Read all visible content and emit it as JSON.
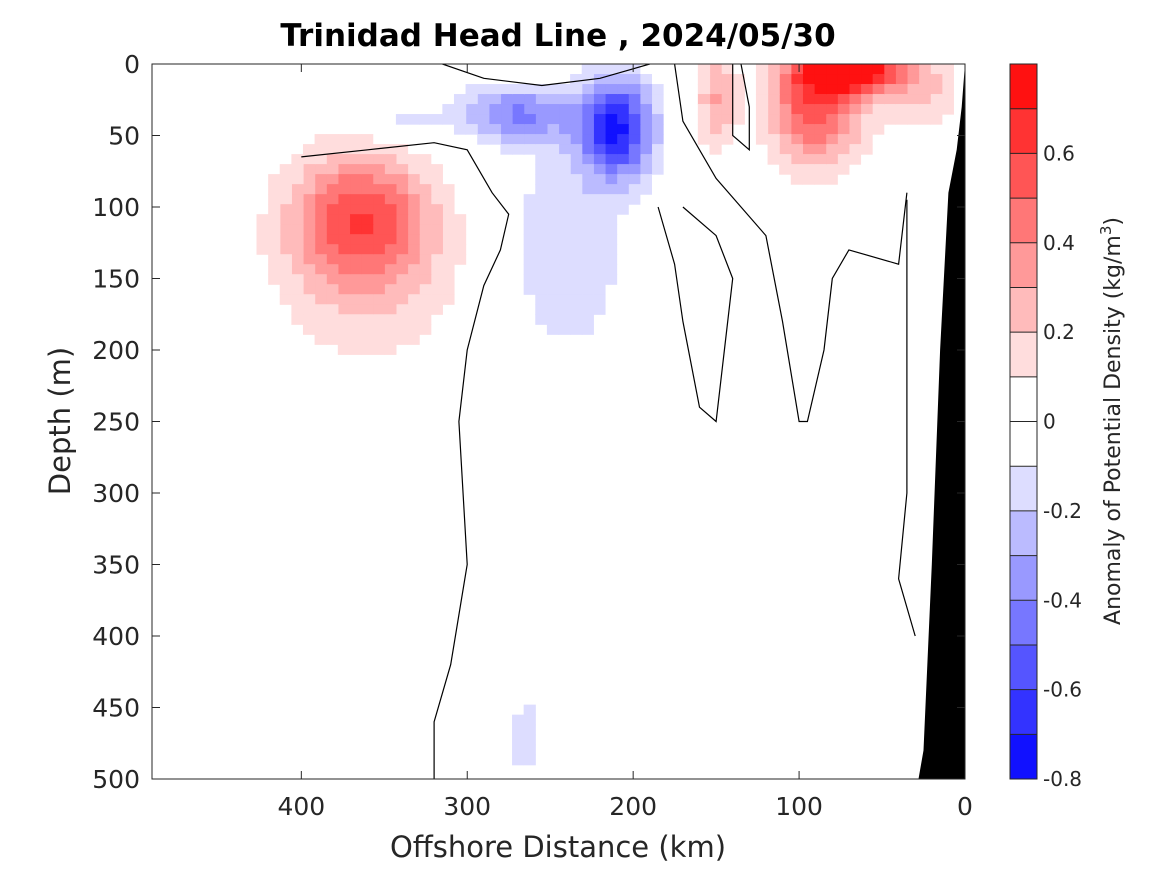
{
  "chart_data": {
    "type": "heatmap",
    "subtype": "filled-contour-section",
    "title": "Trinidad Head Line , 2024/05/30",
    "xlabel": "Offshore Distance (km)",
    "ylabel": "Depth (m)",
    "colorbar_label": "Anomaly of Potential Density (kg/m",
    "colorbar_label_sup": "3",
    "colorbar_label_end": ")",
    "xlim": [
      490,
      0
    ],
    "x_reversed": true,
    "ylim": [
      0,
      500
    ],
    "y_reversed": true,
    "xticks": [
      400,
      300,
      200,
      100,
      0
    ],
    "xtick_labels": [
      "400",
      "300",
      "200",
      "100",
      "0"
    ],
    "yticks": [
      0,
      50,
      100,
      150,
      200,
      250,
      300,
      350,
      400,
      450,
      500
    ],
    "ytick_labels": [
      "0",
      "50",
      "100",
      "150",
      "200",
      "250",
      "300",
      "350",
      "400",
      "450",
      "500"
    ],
    "clim": [
      -0.8,
      0.8
    ],
    "level_step": 0.1,
    "cbar_ticks": [
      0.6,
      0.4,
      0.2,
      0,
      -0.2,
      -0.4,
      -0.6,
      -0.8
    ],
    "cbar_tick_labels": [
      "0.6",
      "0.4",
      "0.2",
      "0",
      "-0.2",
      "-0.4",
      "-0.6",
      "-0.8"
    ],
    "colormap": "blue-white-red",
    "colors": {
      "negative_max": "#0000ff",
      "positive_max": "#ff0000",
      "neutral": "#ffffff",
      "zero_contour": "#000000",
      "bathymetry": "#000000"
    },
    "bathymetry": [
      [
        0,
        0
      ],
      [
        2,
        30
      ],
      [
        5,
        60
      ],
      [
        10,
        90
      ],
      [
        15,
        200
      ],
      [
        20,
        350
      ],
      [
        25,
        480
      ],
      [
        28,
        500
      ],
      [
        0,
        500
      ]
    ],
    "anomaly_features": [
      {
        "x": 365,
        "depth": 105,
        "peak": 0.5,
        "sx": 42,
        "sy": 45
      },
      {
        "x": 360,
        "depth": 150,
        "peak": 0.2,
        "sx": 55,
        "sy": 60
      },
      {
        "x": 90,
        "depth": 25,
        "peak": 0.6,
        "sx": 28,
        "sy": 45
      },
      {
        "x": 65,
        "depth": 5,
        "peak": 0.75,
        "sx": 30,
        "sy": 14
      },
      {
        "x": 25,
        "depth": 20,
        "peak": 0.2,
        "sx": 22,
        "sy": 30
      },
      {
        "x": 150,
        "depth": 25,
        "peak": 0.3,
        "sx": 12,
        "sy": 35
      },
      {
        "x": 210,
        "depth": 45,
        "peak": -0.7,
        "sx": 22,
        "sy": 35
      },
      {
        "x": 270,
        "depth": 35,
        "peak": -0.4,
        "sx": 35,
        "sy": 20
      },
      {
        "x": 240,
        "depth": 130,
        "peak": -0.2,
        "sx": 35,
        "sy": 75
      },
      {
        "x": 340,
        "depth": 40,
        "peak": -0.15,
        "sx": 25,
        "sy": 15
      },
      {
        "x": 265,
        "depth": 470,
        "peak": -0.15,
        "sx": 10,
        "sy": 40
      }
    ],
    "zero_contours": [
      [
        [
          315,
          0
        ],
        [
          290,
          10
        ],
        [
          255,
          15
        ],
        [
          220,
          10
        ],
        [
          190,
          0
        ]
      ],
      [
        [
          400,
          65
        ],
        [
          360,
          60
        ],
        [
          320,
          55
        ],
        [
          300,
          60
        ],
        [
          285,
          90
        ],
        [
          275,
          105
        ],
        [
          280,
          130
        ],
        [
          290,
          155
        ],
        [
          300,
          200
        ],
        [
          305,
          250
        ],
        [
          300,
          350
        ],
        [
          310,
          420
        ],
        [
          320,
          460
        ],
        [
          320,
          500
        ]
      ],
      [
        [
          175,
          0
        ],
        [
          170,
          40
        ],
        [
          150,
          80
        ],
        [
          120,
          120
        ],
        [
          110,
          180
        ],
        [
          100,
          250
        ],
        [
          95,
          250
        ],
        [
          85,
          200
        ],
        [
          80,
          150
        ],
        [
          70,
          130
        ],
        [
          40,
          140
        ],
        [
          35,
          90
        ]
      ],
      [
        [
          185,
          100
        ],
        [
          175,
          140
        ],
        [
          170,
          180
        ],
        [
          165,
          210
        ],
        [
          160,
          240
        ],
        [
          150,
          250
        ],
        [
          145,
          200
        ],
        [
          140,
          150
        ],
        [
          150,
          120
        ],
        [
          170,
          100
        ]
      ],
      [
        [
          135,
          0
        ],
        [
          130,
          30
        ],
        [
          130,
          60
        ],
        [
          140,
          50
        ],
        [
          140,
          0
        ]
      ],
      [
        [
          35,
          95
        ],
        [
          35,
          300
        ],
        [
          40,
          360
        ],
        [
          30,
          400
        ]
      ]
    ]
  }
}
